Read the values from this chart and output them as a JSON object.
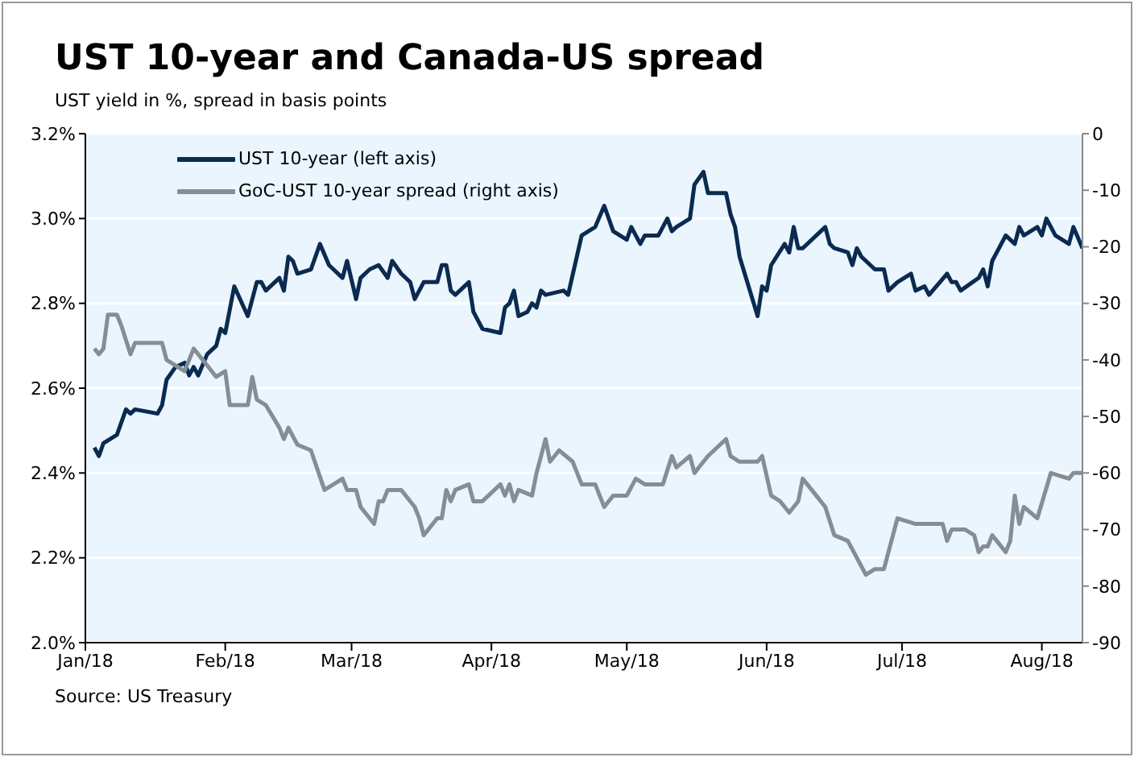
{
  "chart_data": {
    "type": "line",
    "title": "UST 10-year and Canada-US spread",
    "subtitle": "UST yield in %, spread in basis points",
    "annotations": [
      "Source: US Treasury"
    ],
    "xlim": [
      "2018-01-01",
      "2018-08-10"
    ],
    "xticks": [
      {
        "value": "2018-01-01",
        "label": "Jan/18"
      },
      {
        "value": "2018-02-01",
        "label": "Feb/18"
      },
      {
        "value": "2018-03-01",
        "label": "Mar/18"
      },
      {
        "value": "2018-04-01",
        "label": "Apr/18"
      },
      {
        "value": "2018-05-01",
        "label": "May/18"
      },
      {
        "value": "2018-06-01",
        "label": "Jun/18"
      },
      {
        "value": "2018-07-01",
        "label": "Jul/18"
      },
      {
        "value": "2018-08-01",
        "label": "Aug/18"
      }
    ],
    "ylim": [
      2.0,
      3.2
    ],
    "yticks": [
      {
        "value": 2.0,
        "label": "2.0%"
      },
      {
        "value": 2.2,
        "label": "2.2%"
      },
      {
        "value": 2.4,
        "label": "2.4%"
      },
      {
        "value": 2.6,
        "label": "2.6%"
      },
      {
        "value": 2.8,
        "label": "2.8%"
      },
      {
        "value": 3.0,
        "label": "3.0%"
      },
      {
        "value": 3.2,
        "label": "3.2%"
      }
    ],
    "y2lim": [
      -90,
      0
    ],
    "y2ticks": [
      -90,
      -80,
      -70,
      -60,
      -50,
      -40,
      -30,
      -20,
      -10,
      0
    ],
    "grid": "y",
    "legend": "top left",
    "series": [
      {
        "name": "UST 10-year (left axis)",
        "color": "#0b2a50",
        "x": [
          "2018-01-03",
          "2018-01-04",
          "2018-01-05",
          "2018-01-08",
          "2018-01-10",
          "2018-01-11",
          "2018-01-12",
          "2018-01-17",
          "2018-01-18",
          "2018-01-19",
          "2018-01-21",
          "2018-01-23",
          "2018-01-24",
          "2018-01-25",
          "2018-01-26",
          "2018-01-28",
          "2018-01-30",
          "2018-01-31",
          "2018-02-01",
          "2018-02-03",
          "2018-02-06",
          "2018-02-08",
          "2018-02-09",
          "2018-02-10",
          "2018-02-13",
          "2018-02-14",
          "2018-02-15",
          "2018-02-16",
          "2018-02-17",
          "2018-02-20",
          "2018-02-22",
          "2018-02-24",
          "2018-02-27",
          "2018-02-28",
          "2018-03-02",
          "2018-03-03",
          "2018-03-05",
          "2018-03-07",
          "2018-03-09",
          "2018-03-10",
          "2018-03-12",
          "2018-03-14",
          "2018-03-15",
          "2018-03-17",
          "2018-03-20",
          "2018-03-21",
          "2018-03-22",
          "2018-03-23",
          "2018-03-24",
          "2018-03-27",
          "2018-03-28",
          "2018-03-30",
          "2018-04-03",
          "2018-04-04",
          "2018-04-05",
          "2018-04-06",
          "2018-04-07",
          "2018-04-09",
          "2018-04-10",
          "2018-04-11",
          "2018-04-12",
          "2018-04-13",
          "2018-04-17",
          "2018-04-18",
          "2018-04-21",
          "2018-04-24",
          "2018-04-26",
          "2018-04-28",
          "2018-05-01",
          "2018-05-02",
          "2018-05-04",
          "2018-05-05",
          "2018-05-08",
          "2018-05-10",
          "2018-05-11",
          "2018-05-12",
          "2018-05-15",
          "2018-05-16",
          "2018-05-18",
          "2018-05-19",
          "2018-05-23",
          "2018-05-24",
          "2018-05-25",
          "2018-05-26",
          "2018-05-30",
          "2018-05-31",
          "2018-06-01",
          "2018-06-02",
          "2018-06-05",
          "2018-06-06",
          "2018-06-07",
          "2018-06-08",
          "2018-06-09",
          "2018-06-12",
          "2018-06-14",
          "2018-06-15",
          "2018-06-16",
          "2018-06-19",
          "2018-06-20",
          "2018-06-21",
          "2018-06-22",
          "2018-06-23",
          "2018-06-25",
          "2018-06-27",
          "2018-06-28",
          "2018-06-30",
          "2018-07-03",
          "2018-07-04",
          "2018-07-06",
          "2018-07-07",
          "2018-07-11",
          "2018-07-12",
          "2018-07-13",
          "2018-07-14",
          "2018-07-18",
          "2018-07-19",
          "2018-07-20",
          "2018-07-21",
          "2018-07-24",
          "2018-07-26",
          "2018-07-27",
          "2018-07-28",
          "2018-07-31",
          "2018-08-01",
          "2018-08-02",
          "2018-08-04",
          "2018-08-07",
          "2018-08-08",
          "2018-08-10"
        ],
        "values": [
          2.46,
          2.44,
          2.47,
          2.49,
          2.55,
          2.54,
          2.55,
          2.54,
          2.56,
          2.62,
          2.65,
          2.66,
          2.63,
          2.65,
          2.63,
          2.68,
          2.7,
          2.74,
          2.73,
          2.84,
          2.77,
          2.85,
          2.85,
          2.83,
          2.86,
          2.83,
          2.91,
          2.9,
          2.87,
          2.88,
          2.94,
          2.89,
          2.86,
          2.9,
          2.81,
          2.86,
          2.88,
          2.89,
          2.86,
          2.9,
          2.87,
          2.85,
          2.81,
          2.85,
          2.85,
          2.89,
          2.89,
          2.83,
          2.82,
          2.85,
          2.78,
          2.74,
          2.73,
          2.79,
          2.8,
          2.83,
          2.77,
          2.78,
          2.8,
          2.79,
          2.83,
          2.82,
          2.83,
          2.82,
          2.96,
          2.98,
          3.03,
          2.97,
          2.95,
          2.98,
          2.94,
          2.96,
          2.96,
          3.0,
          2.97,
          2.98,
          3.0,
          3.08,
          3.11,
          3.06,
          3.06,
          3.01,
          2.98,
          2.91,
          2.77,
          2.84,
          2.83,
          2.89,
          2.94,
          2.92,
          2.98,
          2.93,
          2.93,
          2.96,
          2.98,
          2.94,
          2.93,
          2.92,
          2.89,
          2.93,
          2.91,
          2.9,
          2.88,
          2.88,
          2.83,
          2.85,
          2.87,
          2.83,
          2.84,
          2.82,
          2.87,
          2.85,
          2.85,
          2.83,
          2.86,
          2.88,
          2.84,
          2.9,
          2.96,
          2.94,
          2.98,
          2.96,
          2.98,
          2.96,
          3.0,
          2.96,
          2.94,
          2.98,
          2.93
        ]
      },
      {
        "name": "GoC-UST 10-year spread (right axis)",
        "color": "#858d95",
        "axis": "y2",
        "x": [
          "2018-01-03",
          "2018-01-04",
          "2018-01-05",
          "2018-01-06",
          "2018-01-08",
          "2018-01-09",
          "2018-01-11",
          "2018-01-12",
          "2018-01-18",
          "2018-01-19",
          "2018-01-23",
          "2018-01-25",
          "2018-01-27",
          "2018-01-30",
          "2018-02-01",
          "2018-02-02",
          "2018-02-06",
          "2018-02-07",
          "2018-02-08",
          "2018-02-10",
          "2018-02-13",
          "2018-02-14",
          "2018-02-15",
          "2018-02-17",
          "2018-02-20",
          "2018-02-23",
          "2018-02-27",
          "2018-02-28",
          "2018-03-02",
          "2018-03-03",
          "2018-03-06",
          "2018-03-07",
          "2018-03-08",
          "2018-03-09",
          "2018-03-12",
          "2018-03-14",
          "2018-03-15",
          "2018-03-16",
          "2018-03-17",
          "2018-03-20",
          "2018-03-21",
          "2018-03-22",
          "2018-03-23",
          "2018-03-24",
          "2018-03-27",
          "2018-03-28",
          "2018-03-30",
          "2018-04-03",
          "2018-04-04",
          "2018-04-05",
          "2018-04-06",
          "2018-04-07",
          "2018-04-10",
          "2018-04-11",
          "2018-04-13",
          "2018-04-14",
          "2018-04-16",
          "2018-04-19",
          "2018-04-21",
          "2018-04-24",
          "2018-04-26",
          "2018-04-28",
          "2018-05-01",
          "2018-05-03",
          "2018-05-05",
          "2018-05-09",
          "2018-05-11",
          "2018-05-12",
          "2018-05-15",
          "2018-05-16",
          "2018-05-17",
          "2018-05-19",
          "2018-05-23",
          "2018-05-24",
          "2018-05-26",
          "2018-05-30",
          "2018-05-31",
          "2018-06-02",
          "2018-06-04",
          "2018-06-06",
          "2018-06-08",
          "2018-06-09",
          "2018-06-13",
          "2018-06-14",
          "2018-06-16",
          "2018-06-19",
          "2018-06-23",
          "2018-06-25",
          "2018-06-27",
          "2018-06-30",
          "2018-07-04",
          "2018-07-10",
          "2018-07-11",
          "2018-07-12",
          "2018-07-15",
          "2018-07-17",
          "2018-07-18",
          "2018-07-19",
          "2018-07-20",
          "2018-07-21",
          "2018-07-24",
          "2018-07-25",
          "2018-07-26",
          "2018-07-27",
          "2018-07-28",
          "2018-07-31",
          "2018-08-03",
          "2018-08-07",
          "2018-08-08",
          "2018-08-10"
        ],
        "values": [
          -38,
          -39,
          -38,
          -32,
          -32,
          -34,
          -39,
          -37,
          -37,
          -40,
          -42,
          -38,
          -40,
          -43,
          -42,
          -48,
          -48,
          -43,
          -47,
          -48,
          -52,
          -54,
          -52,
          -55,
          -56,
          -63,
          -61,
          -63,
          -63,
          -66,
          -69,
          -65,
          -65,
          -63,
          -63,
          -65,
          -66,
          -68,
          -71,
          -68,
          -68,
          -63,
          -65,
          -63,
          -62,
          -65,
          -65,
          -62,
          -64,
          -62,
          -65,
          -63,
          -64,
          -60,
          -54,
          -58,
          -56,
          -58,
          -62,
          -62,
          -66,
          -64,
          -64,
          -61,
          -62,
          -62,
          -57,
          -59,
          -57,
          -60,
          -59,
          -57,
          -54,
          -57,
          -58,
          -58,
          -57,
          -64,
          -65,
          -67,
          -65,
          -61,
          -65,
          -66,
          -71,
          -72,
          -78,
          -77,
          -77,
          -68,
          -69,
          -69,
          -72,
          -70,
          -70,
          -71,
          -74,
          -73,
          -73,
          -71,
          -74,
          -72,
          -64,
          -69,
          -66,
          -68,
          -60,
          -61,
          -60,
          -60
        ]
      }
    ]
  }
}
